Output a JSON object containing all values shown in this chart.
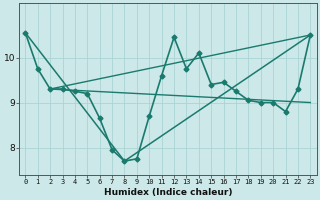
{
  "xlabel": "Humidex (Indice chaleur)",
  "bg_color": "#cce8e8",
  "grid_color": "#aad4d4",
  "line_color": "#1a7a6e",
  "xlim": [
    -0.5,
    23.5
  ],
  "ylim": [
    7.4,
    11.2
  ],
  "yticks": [
    8,
    9,
    10
  ],
  "xticks": [
    0,
    1,
    2,
    3,
    4,
    5,
    6,
    7,
    8,
    9,
    10,
    11,
    12,
    13,
    14,
    15,
    16,
    17,
    18,
    19,
    20,
    21,
    22,
    23
  ],
  "series": [
    {
      "x": [
        0,
        1,
        2,
        3,
        4,
        5,
        6,
        7,
        8,
        9,
        10,
        11,
        12,
        13,
        14,
        15,
        16,
        17,
        18,
        19,
        20,
        21,
        22,
        23
      ],
      "y": [
        10.55,
        9.75,
        9.3,
        9.3,
        9.25,
        9.2,
        8.65,
        7.95,
        7.7,
        7.75,
        8.7,
        9.6,
        10.45,
        9.75,
        10.1,
        9.4,
        9.45,
        9.25,
        9.05,
        9.0,
        9.0,
        8.8,
        9.3,
        10.5
      ],
      "marker": "D",
      "markersize": 2.5,
      "linewidth": 1.2
    },
    {
      "x": [
        0,
        8,
        23
      ],
      "y": [
        10.55,
        7.7,
        10.5
      ],
      "marker": null,
      "markersize": 0,
      "linewidth": 1.1
    },
    {
      "x": [
        2,
        23
      ],
      "y": [
        9.3,
        10.5
      ],
      "marker": null,
      "markersize": 0,
      "linewidth": 1.0
    },
    {
      "x": [
        2,
        23
      ],
      "y": [
        9.3,
        9.0
      ],
      "marker": null,
      "markersize": 0,
      "linewidth": 1.0
    }
  ]
}
